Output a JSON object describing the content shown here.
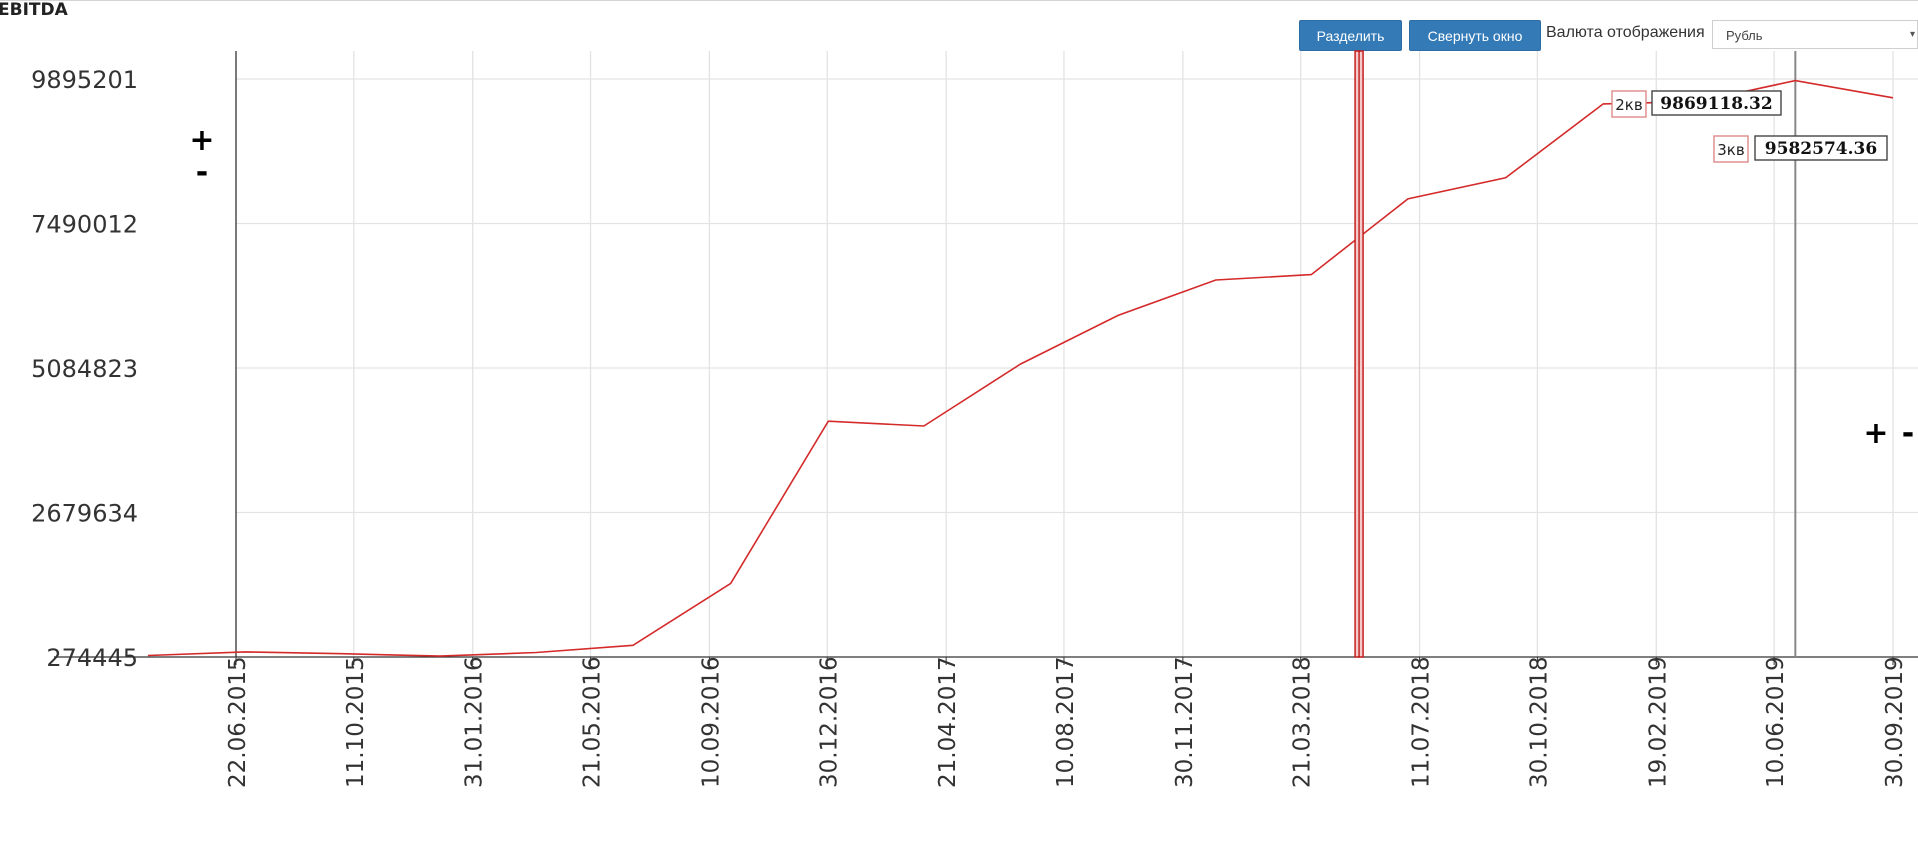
{
  "title": "EBITDA",
  "toolbar": {
    "split_label": "Разделить",
    "collapse_label": "Свернуть окно",
    "currency_label": "Валюта отображения",
    "currency_value": "Рубль",
    "dropdown_arrow": "▾"
  },
  "zoom_y": {
    "plus": "+",
    "minus": "-"
  },
  "zoom_x": {
    "plus": "+",
    "minus": "-"
  },
  "colors": {
    "line": "#d42a2a",
    "button": "#337ab7",
    "grid": "#e3e3e3"
  },
  "chart_data": {
    "type": "line",
    "xlabel": "",
    "ylabel": "",
    "grid": true,
    "x_ticks": [
      "22.06.2015",
      "11.10.2015",
      "31.01.2016",
      "21.05.2016",
      "10.09.2016",
      "30.12.2016",
      "21.04.2017",
      "10.08.2017",
      "30.11.2017",
      "21.03.2018",
      "11.07.2018",
      "30.10.2018",
      "19.02.2019",
      "10.06.2019",
      "30.09.2019"
    ],
    "y_ticks": [
      274445,
      2679634,
      5084823,
      7490012,
      9895201
    ],
    "ylim": [
      274445,
      9895201
    ],
    "xlim": [
      "22.06.2015",
      "30.09.2019"
    ],
    "series": [
      {
        "points": [
          {
            "x": "31.03.2015",
            "y": 300000
          },
          {
            "x": "30.06.2015",
            "y": 360000
          },
          {
            "x": "30.09.2015",
            "y": 330000
          },
          {
            "x": "31.12.2015",
            "y": 290000
          },
          {
            "x": "31.03.2016",
            "y": 350000
          },
          {
            "x": "30.06.2016",
            "y": 470000
          },
          {
            "x": "30.09.2016",
            "y": 1500000
          },
          {
            "x": "31.12.2016",
            "y": 4200000
          },
          {
            "x": "31.03.2017",
            "y": 4120000
          },
          {
            "x": "30.06.2017",
            "y": 5150000
          },
          {
            "x": "30.09.2017",
            "y": 5960000
          },
          {
            "x": "31.12.2017",
            "y": 6550000
          },
          {
            "x": "31.03.2018",
            "y": 6640000
          },
          {
            "x": "30.06.2018",
            "y": 7900000
          },
          {
            "x": "30.09.2018",
            "y": 8250000
          },
          {
            "x": "31.12.2018",
            "y": 9480000
          },
          {
            "x": "31.03.2019",
            "y": 9520000
          },
          {
            "x": "30.06.2019",
            "y": 9869118.32
          },
          {
            "x": "30.09.2019",
            "y": 9582574.36
          }
        ]
      }
    ],
    "split_marker": {
      "x": "15.05.2018"
    },
    "cursor_marker": {
      "x": "30.06.2019"
    },
    "tooltips": [
      {
        "label": "2кв",
        "value": "9869118.32"
      },
      {
        "label": "3кв",
        "value": "9582574.36"
      }
    ]
  }
}
